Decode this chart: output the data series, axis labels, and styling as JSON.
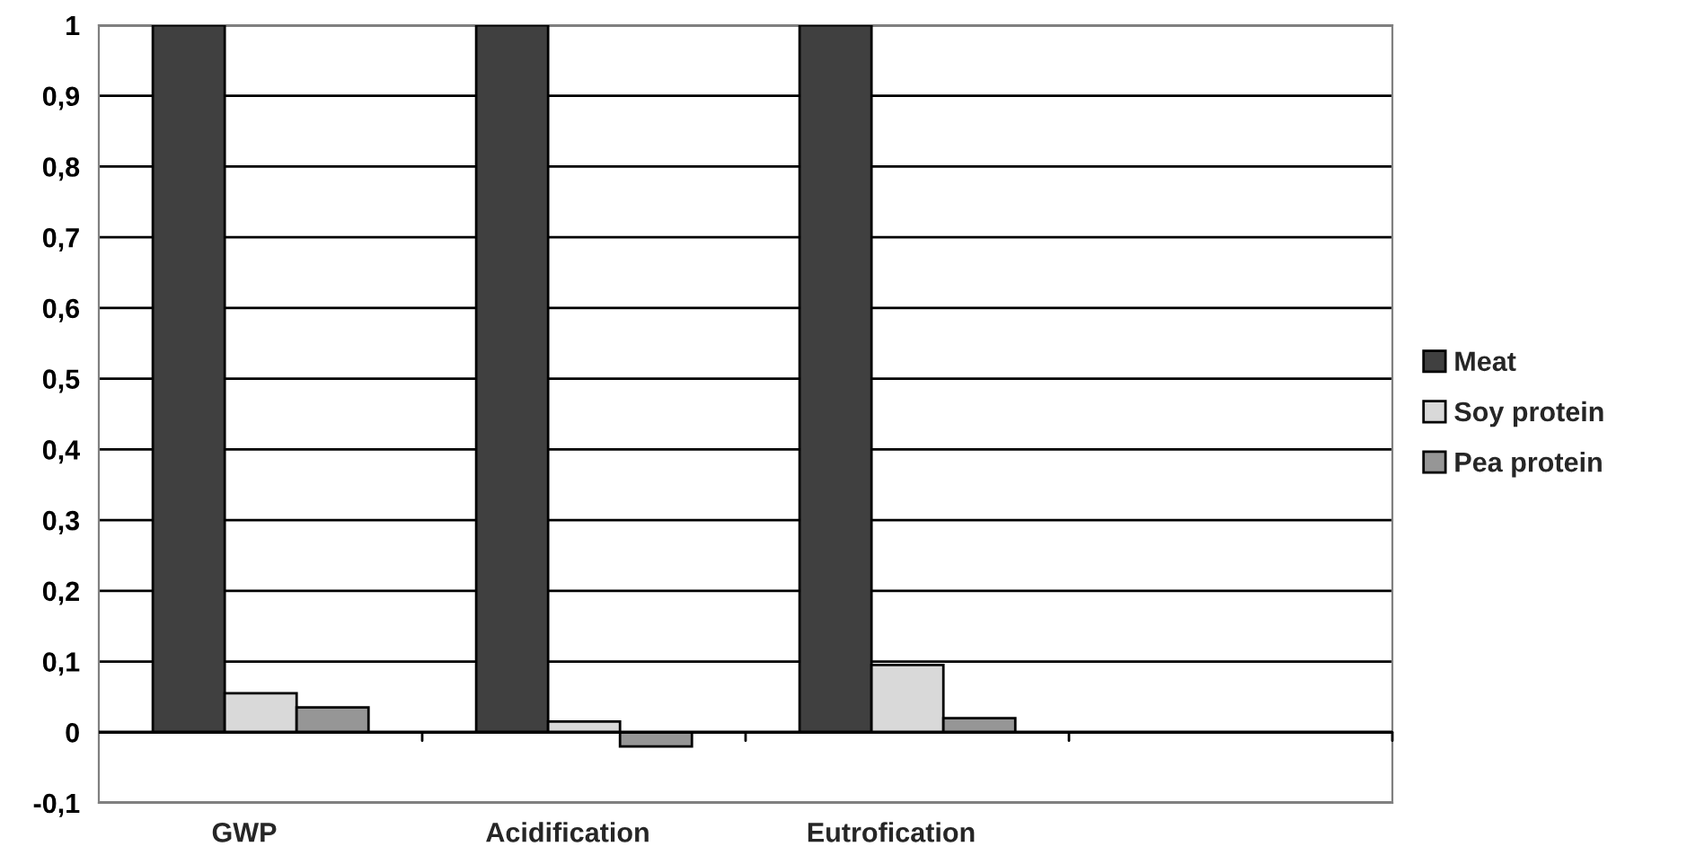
{
  "chart_data": {
    "type": "bar",
    "categories": [
      "GWP",
      "Acidification",
      "Eutrofication",
      null
    ],
    "series": [
      {
        "name": "Meat",
        "color": "#404040",
        "values": [
          1,
          1,
          1,
          null
        ]
      },
      {
        "name": "Soy protein",
        "color": "#d9d9d9",
        "values": [
          0.055,
          0.015,
          0.095,
          null
        ]
      },
      {
        "name": "Pea protein",
        "color": "#969696",
        "values": [
          0.035,
          -0.02,
          0.02,
          null
        ]
      }
    ],
    "ylim": [
      -0.1,
      1
    ],
    "yticks": [
      {
        "value": -0.1,
        "label": "-0,1"
      },
      0,
      {
        "value": 0.1,
        "label": "0,1"
      },
      {
        "value": 0.2,
        "label": "0,2"
      },
      {
        "value": 0.3,
        "label": "0,3"
      },
      {
        "value": 0.4,
        "label": "0,4"
      },
      {
        "value": 0.5,
        "label": "0,5"
      },
      {
        "value": 0.6,
        "label": "0,6"
      },
      {
        "value": 0.7,
        "label": "0,7"
      },
      {
        "value": 0.8,
        "label": "0,8"
      },
      {
        "value": 0.9,
        "label": "0,9"
      },
      1
    ],
    "grid": "y",
    "legend": "right"
  }
}
